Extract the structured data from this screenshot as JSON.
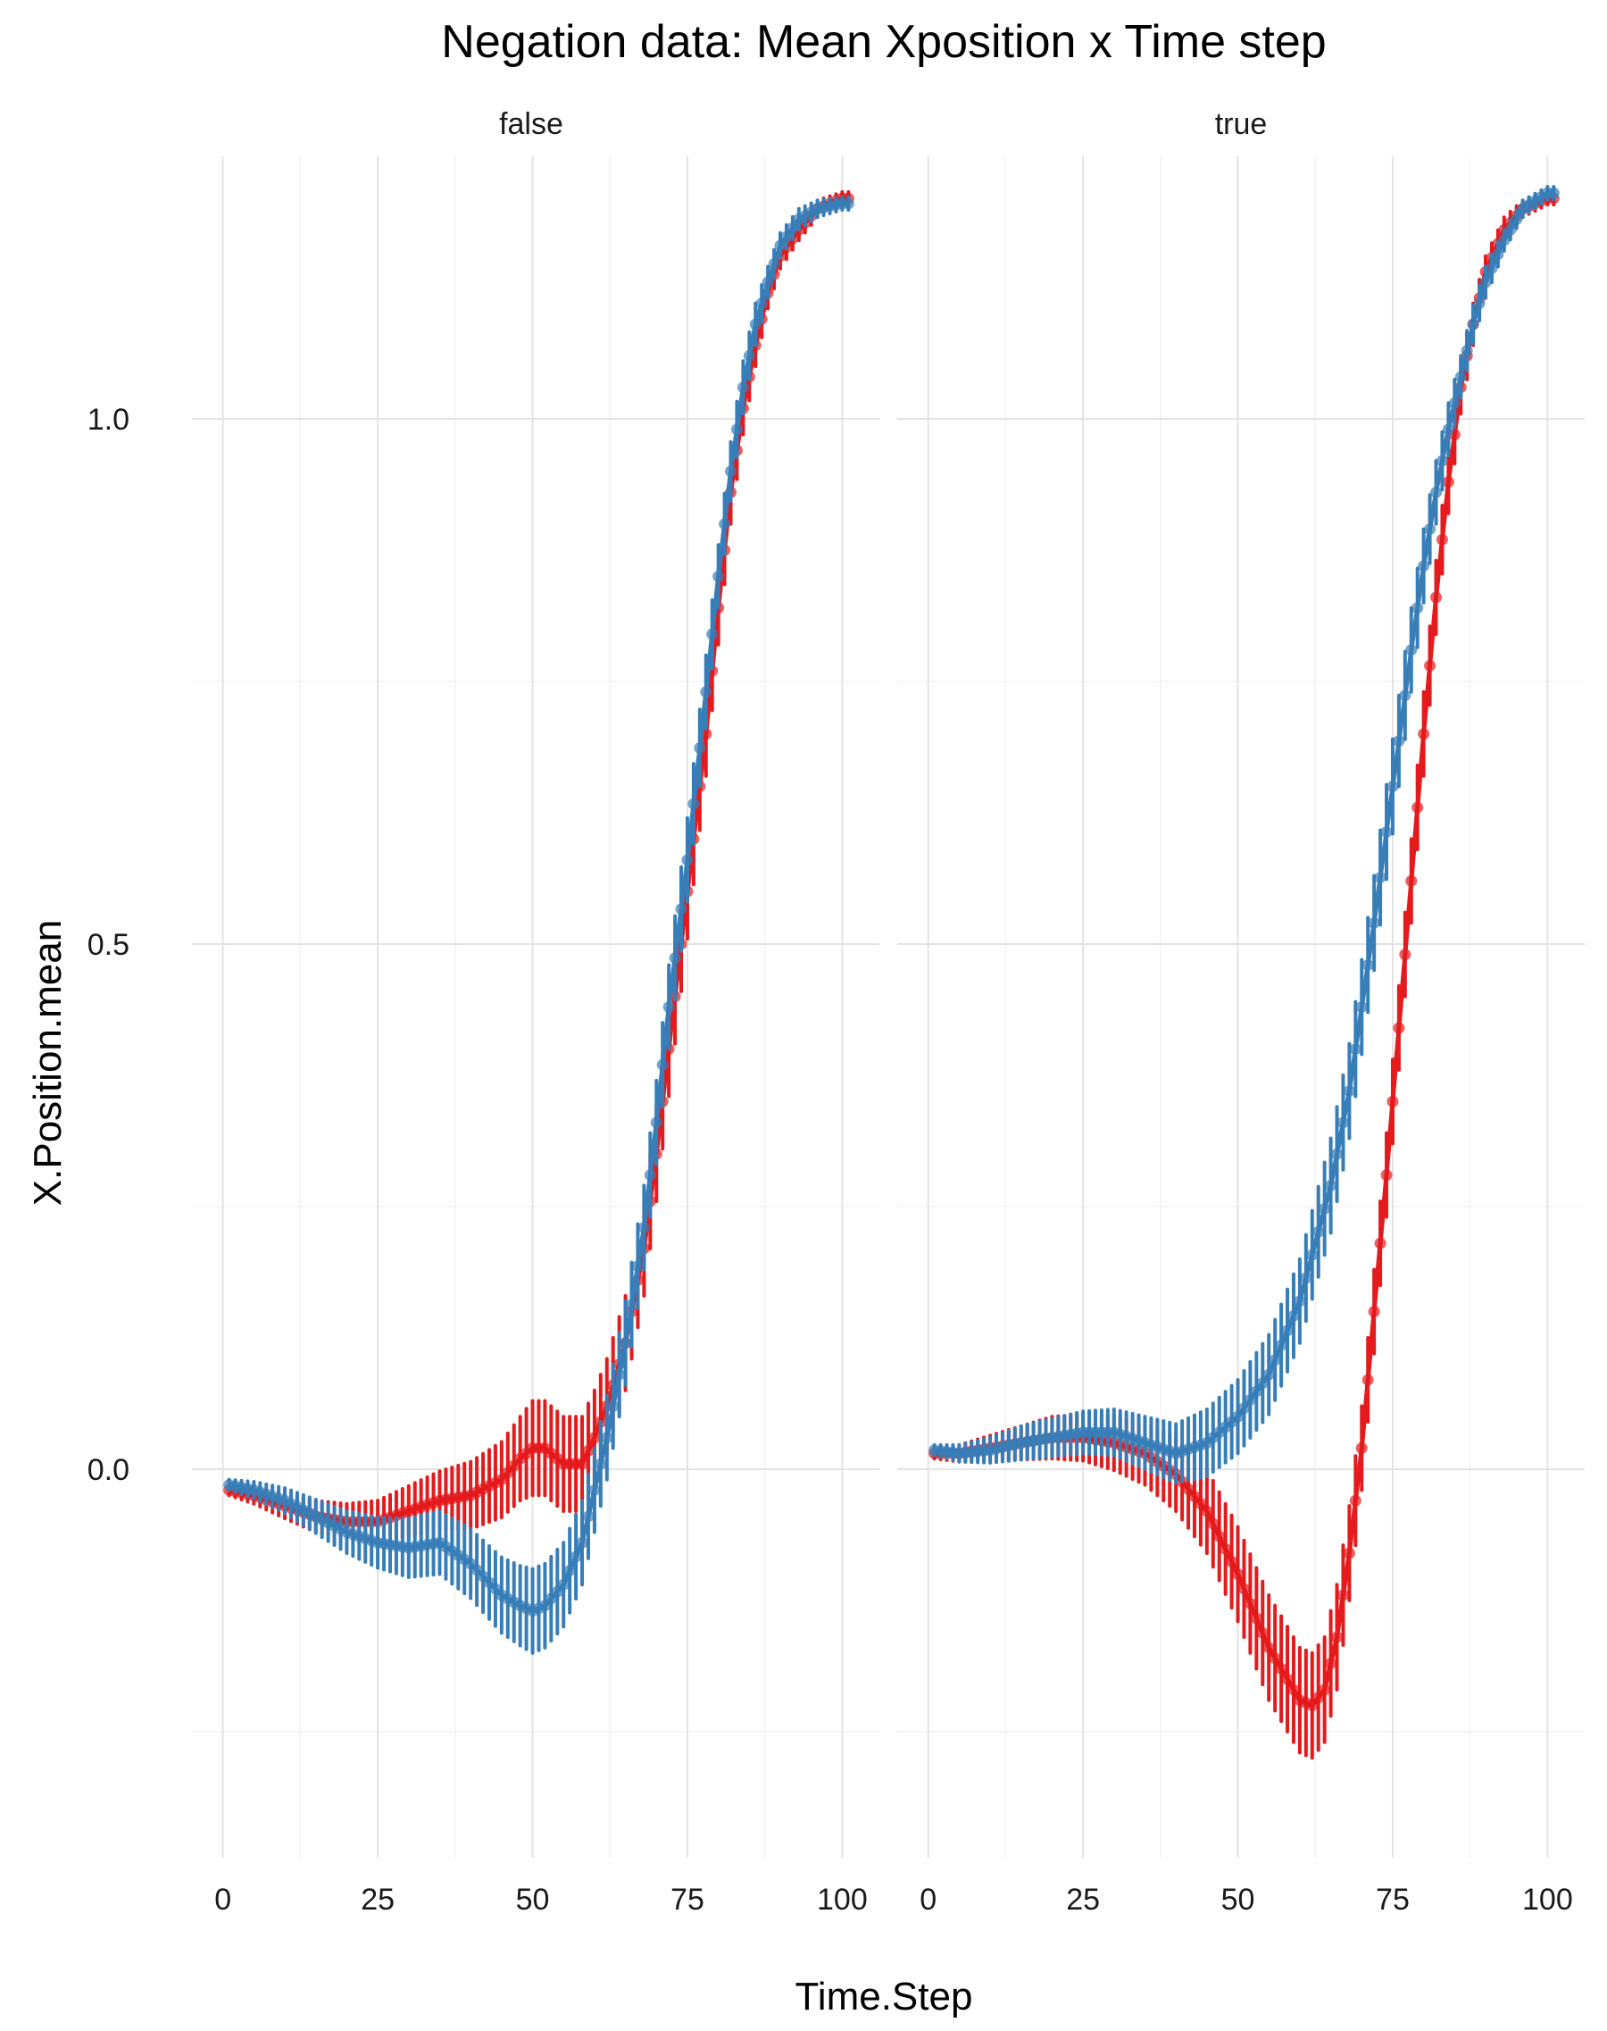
{
  "chart_data": {
    "type": "line",
    "title": "Negation data: Mean Xposition x Time step",
    "xlabel": "Time.Step",
    "ylabel": "X.Position.mean",
    "xlim": [
      -5,
      106
    ],
    "ylim": [
      -0.37,
      1.25
    ],
    "x_ticks": [
      0,
      25,
      50,
      75,
      100
    ],
    "x_tick_labels": [
      "0",
      "25",
      "50",
      "75",
      "100"
    ],
    "y_ticks": [
      0.0,
      0.5,
      1.0
    ],
    "y_tick_labels": [
      "0.0",
      "0.5",
      "1.0"
    ],
    "grid": true,
    "legend": "none",
    "colors": {
      "red": "#e41a1c",
      "blue": "#377eb8"
    },
    "panels": [
      {
        "strip": "false",
        "series": [
          {
            "color": "#e41a1c",
            "points": [
              [
                1,
                -0.02,
                0.005
              ],
              [
                5,
                -0.025,
                0.008
              ],
              [
                10,
                -0.035,
                0.012
              ],
              [
                15,
                -0.045,
                0.015
              ],
              [
                20,
                -0.05,
                0.017
              ],
              [
                25,
                -0.05,
                0.02
              ],
              [
                30,
                -0.04,
                0.024
              ],
              [
                35,
                -0.03,
                0.028
              ],
              [
                40,
                -0.025,
                0.032
              ],
              [
                45,
                -0.01,
                0.036
              ],
              [
                48,
                0.01,
                0.04
              ],
              [
                50,
                0.02,
                0.045
              ],
              [
                52,
                0.02,
                0.045
              ],
              [
                55,
                0.005,
                0.045
              ],
              [
                58,
                0.005,
                0.045
              ],
              [
                60,
                0.03,
                0.045
              ],
              [
                62,
                0.06,
                0.045
              ],
              [
                65,
                0.12,
                0.045
              ],
              [
                68,
                0.21,
                0.045
              ],
              [
                70,
                0.3,
                0.045
              ],
              [
                72,
                0.4,
                0.045
              ],
              [
                75,
                0.55,
                0.045
              ],
              [
                78,
                0.7,
                0.04
              ],
              [
                80,
                0.82,
                0.035
              ],
              [
                82,
                0.93,
                0.03
              ],
              [
                84,
                1.01,
                0.025
              ],
              [
                86,
                1.07,
                0.02
              ],
              [
                88,
                1.12,
                0.015
              ],
              [
                90,
                1.155,
                0.012
              ],
              [
                93,
                1.18,
                0.01
              ],
              [
                96,
                1.2,
                0.008
              ],
              [
                100,
                1.21,
                0.006
              ],
              [
                101,
                1.21,
                0.006
              ]
            ]
          },
          {
            "color": "#377eb8",
            "points": [
              [
                1,
                -0.015,
                0.005
              ],
              [
                5,
                -0.02,
                0.008
              ],
              [
                10,
                -0.03,
                0.012
              ],
              [
                15,
                -0.045,
                0.016
              ],
              [
                20,
                -0.06,
                0.02
              ],
              [
                25,
                -0.07,
                0.024
              ],
              [
                30,
                -0.075,
                0.028
              ],
              [
                35,
                -0.07,
                0.03
              ],
              [
                40,
                -0.09,
                0.033
              ],
              [
                45,
                -0.12,
                0.036
              ],
              [
                48,
                -0.13,
                0.038
              ],
              [
                50,
                -0.135,
                0.04
              ],
              [
                52,
                -0.13,
                0.04
              ],
              [
                55,
                -0.11,
                0.04
              ],
              [
                58,
                -0.07,
                0.04
              ],
              [
                60,
                -0.02,
                0.04
              ],
              [
                62,
                0.03,
                0.04
              ],
              [
                65,
                0.12,
                0.04
              ],
              [
                68,
                0.23,
                0.04
              ],
              [
                70,
                0.33,
                0.04
              ],
              [
                72,
                0.44,
                0.04
              ],
              [
                75,
                0.58,
                0.04
              ],
              [
                78,
                0.74,
                0.035
              ],
              [
                80,
                0.85,
                0.03
              ],
              [
                82,
                0.95,
                0.028
              ],
              [
                84,
                1.03,
                0.025
              ],
              [
                86,
                1.09,
                0.02
              ],
              [
                88,
                1.13,
                0.015
              ],
              [
                90,
                1.165,
                0.012
              ],
              [
                93,
                1.19,
                0.01
              ],
              [
                96,
                1.2,
                0.008
              ],
              [
                100,
                1.205,
                0.006
              ],
              [
                101,
                1.205,
                0.006
              ]
            ]
          }
        ]
      },
      {
        "strip": "true",
        "series": [
          {
            "color": "#e41a1c",
            "points": [
              [
                1,
                0.015,
                0.005
              ],
              [
                5,
                0.015,
                0.008
              ],
              [
                10,
                0.02,
                0.012
              ],
              [
                15,
                0.025,
                0.016
              ],
              [
                20,
                0.03,
                0.02
              ],
              [
                25,
                0.03,
                0.022
              ],
              [
                30,
                0.025,
                0.026
              ],
              [
                35,
                0.015,
                0.03
              ],
              [
                40,
                -0.005,
                0.035
              ],
              [
                45,
                -0.04,
                0.04
              ],
              [
                50,
                -0.1,
                0.045
              ],
              [
                55,
                -0.17,
                0.05
              ],
              [
                58,
                -0.2,
                0.05
              ],
              [
                60,
                -0.22,
                0.05
              ],
              [
                62,
                -0.225,
                0.05
              ],
              [
                64,
                -0.21,
                0.05
              ],
              [
                66,
                -0.16,
                0.05
              ],
              [
                68,
                -0.08,
                0.045
              ],
              [
                70,
                0.02,
                0.04
              ],
              [
                72,
                0.15,
                0.04
              ],
              [
                74,
                0.28,
                0.04
              ],
              [
                76,
                0.42,
                0.04
              ],
              [
                78,
                0.56,
                0.04
              ],
              [
                80,
                0.7,
                0.04
              ],
              [
                82,
                0.83,
                0.035
              ],
              [
                84,
                0.94,
                0.03
              ],
              [
                86,
                1.03,
                0.025
              ],
              [
                88,
                1.09,
                0.02
              ],
              [
                90,
                1.14,
                0.015
              ],
              [
                93,
                1.18,
                0.012
              ],
              [
                96,
                1.2,
                0.008
              ],
              [
                100,
                1.21,
                0.006
              ],
              [
                101,
                1.21,
                0.006
              ]
            ]
          },
          {
            "color": "#377eb8",
            "points": [
              [
                1,
                0.018,
                0.005
              ],
              [
                5,
                0.015,
                0.008
              ],
              [
                10,
                0.018,
                0.012
              ],
              [
                15,
                0.025,
                0.016
              ],
              [
                20,
                0.03,
                0.018
              ],
              [
                25,
                0.035,
                0.02
              ],
              [
                30,
                0.035,
                0.022
              ],
              [
                35,
                0.025,
                0.025
              ],
              [
                40,
                0.015,
                0.028
              ],
              [
                45,
                0.025,
                0.032
              ],
              [
                50,
                0.05,
                0.035
              ],
              [
                55,
                0.09,
                0.038
              ],
              [
                60,
                0.16,
                0.04
              ],
              [
                65,
                0.27,
                0.045
              ],
              [
                68,
                0.36,
                0.045
              ],
              [
                70,
                0.44,
                0.045
              ],
              [
                72,
                0.52,
                0.045
              ],
              [
                75,
                0.65,
                0.045
              ],
              [
                78,
                0.78,
                0.04
              ],
              [
                80,
                0.86,
                0.035
              ],
              [
                82,
                0.93,
                0.03
              ],
              [
                84,
                0.99,
                0.025
              ],
              [
                86,
                1.04,
                0.02
              ],
              [
                88,
                1.09,
                0.018
              ],
              [
                90,
                1.13,
                0.015
              ],
              [
                93,
                1.17,
                0.01
              ],
              [
                96,
                1.2,
                0.008
              ],
              [
                100,
                1.215,
                0.006
              ],
              [
                101,
                1.215,
                0.006
              ]
            ]
          }
        ]
      }
    ]
  }
}
